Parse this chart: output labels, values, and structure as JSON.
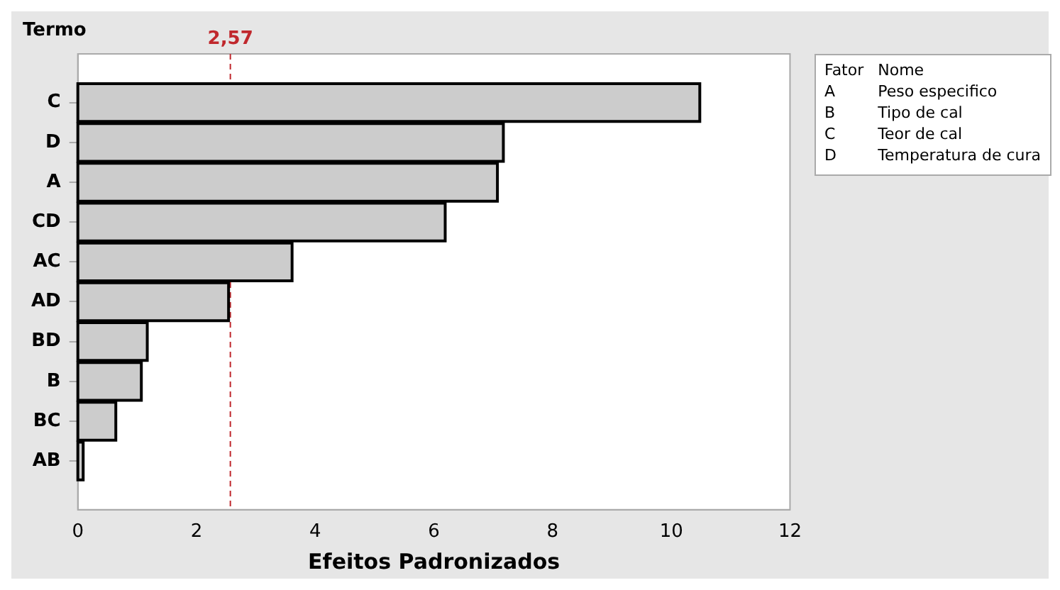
{
  "chart_data": {
    "type": "bar",
    "orientation": "horizontal",
    "ylabel": "Termo",
    "xlabel": "Efeitos Padronizados",
    "categories": [
      "C",
      "D",
      "A",
      "CD",
      "AC",
      "AD",
      "BD",
      "B",
      "BC",
      "AB"
    ],
    "values": [
      10.48,
      7.17,
      7.07,
      6.19,
      3.61,
      2.54,
      1.17,
      1.07,
      0.64,
      0.09
    ],
    "color": "#cccccc",
    "xlim": [
      0,
      12
    ],
    "xticks": [
      0,
      2,
      4,
      6,
      8,
      10,
      12
    ],
    "grid": false,
    "legend": false,
    "ref_lines": [
      {
        "axis": "x",
        "value": 2.57,
        "label": "2,57",
        "color": "#c0282d",
        "line_style": "dashed"
      }
    ],
    "annotations": [
      "Fator",
      "Nome",
      "A",
      "Peso especifico",
      "B",
      "Tipo de cal",
      "C",
      "Teor de cal",
      "D",
      "Temperatura de cura"
    ]
  }
}
